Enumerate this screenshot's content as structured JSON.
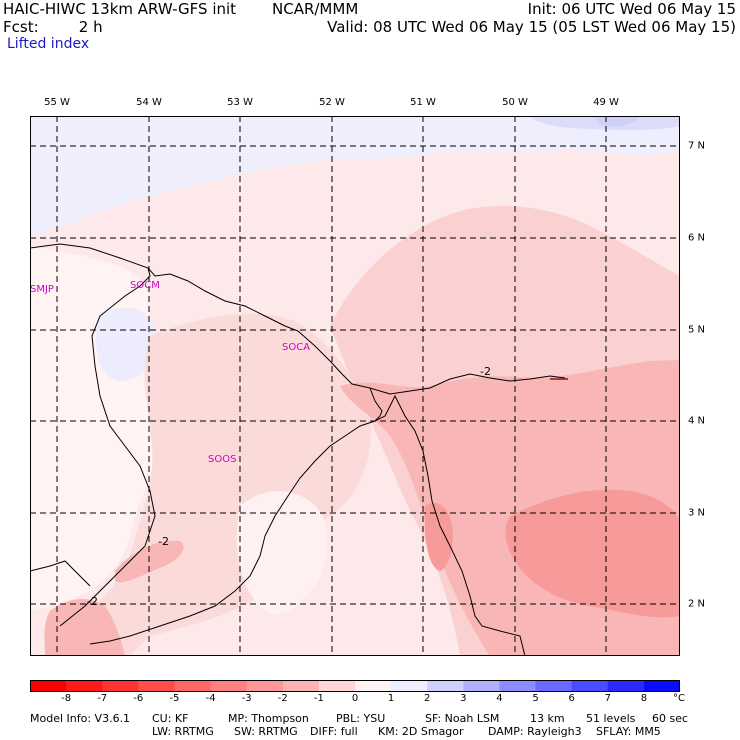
{
  "header": {
    "title": "HAIC-HIWC 13km ARW-GFS init",
    "center": "NCAR/MMM",
    "init": "Init: 06 UTC Wed 06 May 15",
    "fcst_label": "Fcst:",
    "fcst_value": "2 h",
    "valid": "Valid: 08 UTC Wed 06 May 15 (05 LST Wed 06 May 15)",
    "field": "Lifted index"
  },
  "map": {
    "lon_labels": [
      "55 W",
      "54 W",
      "53 W",
      "52 W",
      "51 W",
      "50 W",
      "49 W"
    ],
    "lat_labels": [
      "7 N",
      "6 N",
      "5 N",
      "4 N",
      "3 N",
      "2 N"
    ],
    "stations": [
      "SMJP",
      "SOCM",
      "SOCA",
      "SOOS"
    ],
    "contour_label": "-2",
    "colors": {
      "coast": "#000000",
      "grid": "#000000",
      "station": "#d000d0",
      "contour_dark": "#8a1030"
    }
  },
  "colorbar": {
    "labels": [
      "-8",
      "-7",
      "-6",
      "-5",
      "-4",
      "-3",
      "-2",
      "-1",
      "0",
      "1",
      "2",
      "3",
      "4",
      "5",
      "6",
      "7",
      "8"
    ],
    "unit": "°C",
    "colors": [
      "#ff1a1a",
      "#ff3333",
      "#ff4d4d",
      "#ff6666",
      "#ff8080",
      "#ff9999",
      "#ffb3b3",
      "#ffd6d6",
      "#fff2f2",
      "#ededff",
      "#d0d0ff",
      "#b0b0ff",
      "#8c8cff",
      "#6a6aff",
      "#4a4aff",
      "#2a2aff",
      "#0a0aff"
    ]
  },
  "footer": {
    "line1": [
      "Model Info: V3.6.1",
      "CU: KF",
      "MP: Thompson",
      "PBL: YSU",
      "SF: Noah LSM",
      "13 km",
      "51 levels",
      "60 sec"
    ],
    "line2": [
      "LW: RRTMG",
      "SW: RRTMG",
      "DIFF: full",
      "KM: 2D Smagor",
      "DAMP: Rayleigh3",
      "SFLAY: MM5"
    ]
  }
}
